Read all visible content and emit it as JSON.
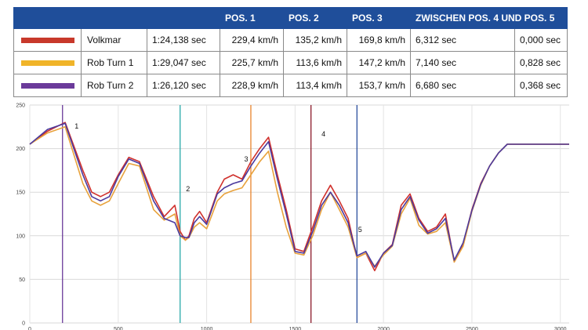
{
  "table": {
    "headers": [
      "",
      "",
      "",
      "POS. 1",
      "POS. 2",
      "POS. 3",
      "ZWISCHEN POS. 4 UND POS. 5",
      ""
    ],
    "rows": [
      {
        "color": "#c8392b",
        "name": "Volkmar",
        "time": "1:24,138 sec",
        "pos1": "229,4 km/h",
        "pos2": "135,2 km/h",
        "pos3": "169,8 km/h",
        "between": "6,312 sec",
        "delta": "0,000 sec"
      },
      {
        "color": "#f0b429",
        "name": "Rob Turn 1",
        "time": "1:29,047 sec",
        "pos1": "225,7 km/h",
        "pos2": "113,6 km/h",
        "pos3": "147,2 km/h",
        "between": "7,140 sec",
        "delta": "0,828 sec"
      },
      {
        "color": "#6b3a9a",
        "name": "Rob Turn 2",
        "time": "1:26,120 sec",
        "pos1": "228,9 km/h",
        "pos2": "113,4 km/h",
        "pos3": "153,7 km/h",
        "between": "6,680 sec",
        "delta": "0,368 sec"
      }
    ]
  },
  "chart_data": {
    "type": "line",
    "ylim": [
      0,
      250
    ],
    "y_ticks": [
      "0",
      "50",
      "100",
      "150",
      "200",
      "250"
    ],
    "xlim": [
      0,
      3050
    ],
    "x_ticks": [
      "0",
      "500",
      "1000",
      "1500",
      "2000",
      "2500",
      "3000"
    ],
    "grid": true,
    "series": [
      {
        "name": "Volkmar",
        "color": "#d0312d",
        "x": [
          0,
          100,
          200,
          300,
          350,
          400,
          450,
          500,
          560,
          620,
          700,
          760,
          820,
          850,
          880,
          900,
          930,
          960,
          1000,
          1060,
          1100,
          1150,
          1200,
          1250,
          1300,
          1350,
          1400,
          1450,
          1500,
          1550,
          1600,
          1650,
          1700,
          1750,
          1800,
          1850,
          1900,
          1950,
          2000,
          2050,
          2100,
          2150,
          2200,
          2250,
          2300,
          2350,
          2400,
          2450,
          2500,
          2550,
          2600,
          2650,
          2700,
          2750,
          2800,
          2850,
          2900,
          2950,
          3000,
          3050
        ],
        "y": [
          205,
          220,
          230,
          175,
          150,
          145,
          150,
          170,
          190,
          185,
          145,
          122,
          135,
          105,
          95,
          100,
          120,
          128,
          115,
          150,
          165,
          170,
          165,
          185,
          200,
          213,
          170,
          130,
          85,
          82,
          110,
          140,
          158,
          140,
          120,
          75,
          80,
          60,
          80,
          90,
          135,
          148,
          120,
          105,
          110,
          125,
          70,
          90,
          130,
          160,
          180,
          195,
          205,
          205,
          205,
          205,
          205,
          205,
          205,
          205
        ]
      },
      {
        "name": "Rob Turn 1",
        "color": "#e8a23c",
        "x": [
          0,
          100,
          200,
          300,
          350,
          400,
          450,
          500,
          560,
          620,
          700,
          760,
          820,
          850,
          880,
          900,
          930,
          960,
          1000,
          1060,
          1100,
          1150,
          1200,
          1250,
          1300,
          1350,
          1400,
          1450,
          1500,
          1550,
          1600,
          1650,
          1700,
          1750,
          1800,
          1850,
          1900,
          1950,
          2000,
          2050,
          2100,
          2150,
          2200,
          2250,
          2300,
          2350,
          2400,
          2450,
          2500,
          2550,
          2600,
          2650,
          2700,
          2750,
          2800,
          2850,
          2900,
          2950,
          3000,
          3050
        ],
        "y": [
          205,
          218,
          225,
          160,
          140,
          135,
          140,
          160,
          183,
          180,
          130,
          118,
          125,
          100,
          95,
          98,
          110,
          115,
          108,
          140,
          148,
          152,
          155,
          170,
          185,
          197,
          150,
          110,
          80,
          78,
          100,
          130,
          150,
          130,
          110,
          75,
          80,
          65,
          78,
          88,
          125,
          143,
          112,
          102,
          105,
          115,
          70,
          88,
          128,
          158,
          180,
          195,
          205,
          205,
          205,
          205,
          205,
          205,
          205,
          205
        ]
      },
      {
        "name": "Rob Turn 2",
        "color": "#4b3a9e",
        "x": [
          0,
          100,
          200,
          300,
          350,
          400,
          450,
          500,
          560,
          620,
          700,
          760,
          820,
          850,
          880,
          900,
          930,
          960,
          1000,
          1060,
          1100,
          1150,
          1200,
          1250,
          1300,
          1350,
          1400,
          1450,
          1500,
          1550,
          1600,
          1650,
          1700,
          1750,
          1800,
          1850,
          1900,
          1950,
          2000,
          2050,
          2100,
          2150,
          2200,
          2250,
          2300,
          2350,
          2400,
          2450,
          2500,
          2550,
          2600,
          2650,
          2700,
          2750,
          2800,
          2850,
          2900,
          2950,
          3000,
          3050
        ],
        "y": [
          205,
          222,
          229,
          170,
          145,
          140,
          145,
          168,
          188,
          183,
          140,
          120,
          115,
          100,
          98,
          98,
          115,
          122,
          113,
          148,
          155,
          160,
          163,
          180,
          195,
          208,
          165,
          125,
          82,
          80,
          105,
          135,
          150,
          135,
          115,
          77,
          82,
          64,
          80,
          89,
          130,
          145,
          118,
          103,
          108,
          120,
          72,
          92,
          129,
          159,
          180,
          195,
          205,
          205,
          205,
          205,
          205,
          205,
          205,
          205
        ]
      }
    ],
    "markers": [
      {
        "label": "1",
        "x": 185,
        "color": "#6b3a9a"
      },
      {
        "label": "2",
        "x": 850,
        "color": "#2aa9a9"
      },
      {
        "label": "3",
        "x": 1250,
        "color": "#e8842b"
      },
      {
        "label": "4",
        "x": 1590,
        "color": "#8b1a2a"
      },
      {
        "label": "5",
        "x": 1850,
        "color": "#2c4f9e"
      }
    ]
  }
}
